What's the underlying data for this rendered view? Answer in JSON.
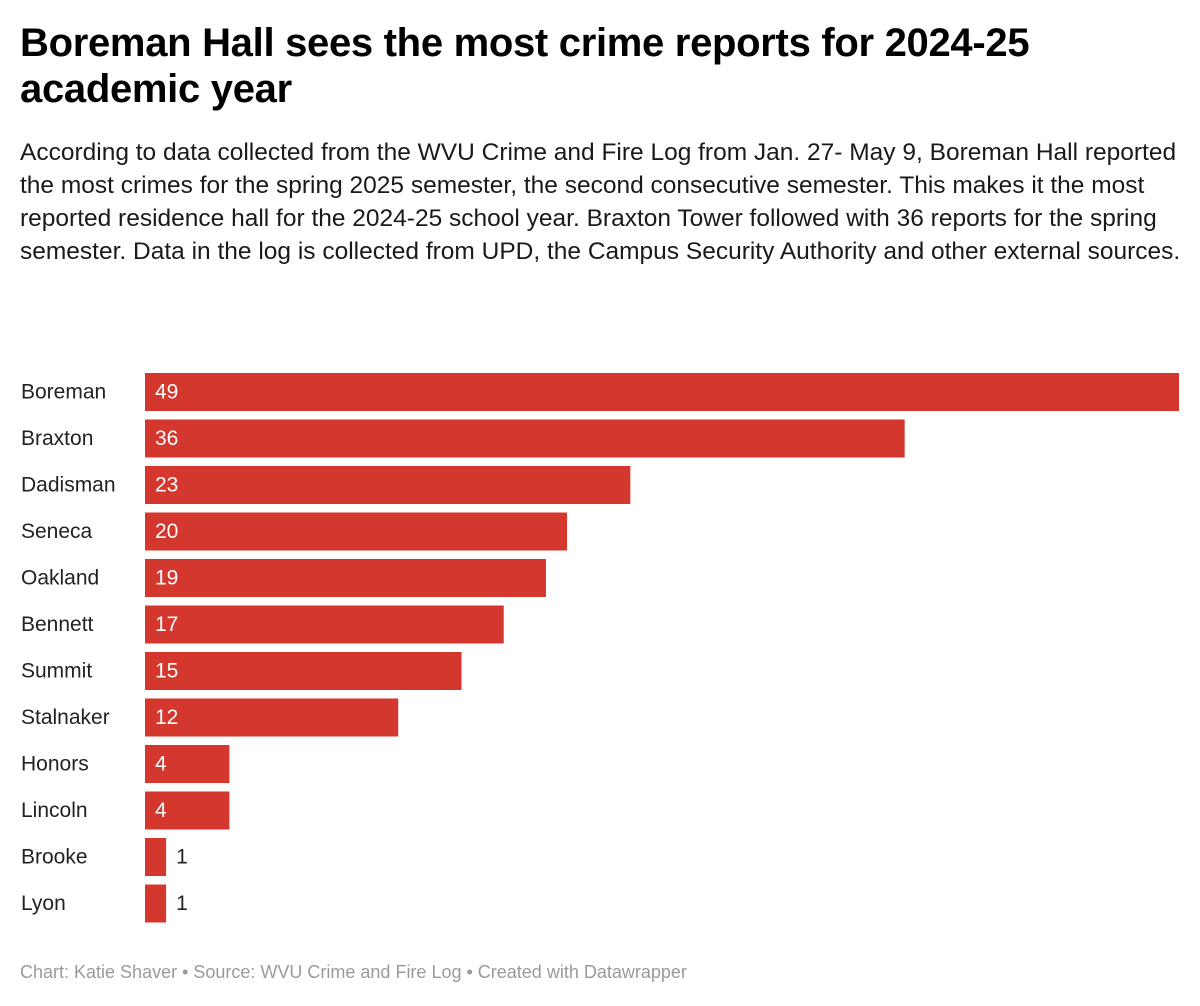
{
  "header": {
    "title": "Boreman Hall sees the most crime reports for 2024-25 academic year",
    "description": "According to data collected from the WVU Crime and Fire Log from Jan. 27- May 9, Boreman Hall reported the most crimes for the spring 2025 semester, the second consecutive semester. This makes it the most reported residence hall for the 2024-25 school year. Braxton Tower followed with 36 reports for the spring semester. Data in the log is collected from UPD, the Campus Security Authority and other external sources."
  },
  "chart_data": {
    "type": "bar",
    "orientation": "horizontal",
    "title": "Boreman Hall sees the most crime reports for 2024-25 academic year",
    "categories": [
      "Boreman",
      "Braxton",
      "Dadisman",
      "Seneca",
      "Oakland",
      "Bennett",
      "Summit",
      "Stalnaker",
      "Honors",
      "Lincoln",
      "Brooke",
      "Lyon"
    ],
    "values": [
      49,
      36,
      23,
      20,
      19,
      17,
      15,
      12,
      4,
      4,
      1,
      1
    ],
    "xlabel": "",
    "ylabel": "",
    "xlim": [
      0,
      49
    ],
    "grid": false,
    "legend": "none"
  },
  "colors": {
    "bar": "#d3372d",
    "label_inside": "#ffffff",
    "label_outside": "#222222",
    "footer": "#9a9a9a"
  },
  "footer": {
    "text": "Chart: Katie Shaver • Source: WVU Crime and Fire Log • Created with Datawrapper"
  }
}
